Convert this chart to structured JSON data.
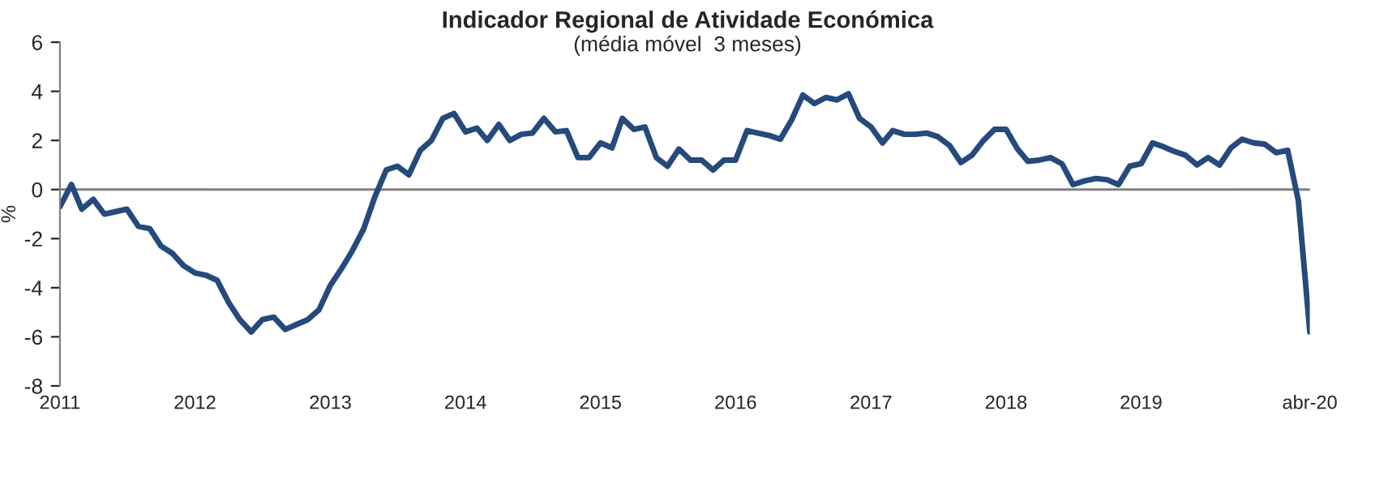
{
  "chart_data": {
    "type": "line",
    "title": "Indicador Regional de Atividade Económica",
    "subtitle": "(média móvel  3 meses)",
    "ylabel": "%",
    "x": [
      "2011-01",
      "2011-02",
      "2011-03",
      "2011-04",
      "2011-05",
      "2011-06",
      "2011-07",
      "2011-08",
      "2011-09",
      "2011-10",
      "2011-11",
      "2011-12",
      "2012-01",
      "2012-02",
      "2012-03",
      "2012-04",
      "2012-05",
      "2012-06",
      "2012-07",
      "2012-08",
      "2012-09",
      "2012-10",
      "2012-11",
      "2012-12",
      "2013-01",
      "2013-02",
      "2013-03",
      "2013-04",
      "2013-05",
      "2013-06",
      "2013-07",
      "2013-08",
      "2013-09",
      "2013-10",
      "2013-11",
      "2013-12",
      "2014-01",
      "2014-02",
      "2014-03",
      "2014-04",
      "2014-05",
      "2014-06",
      "2014-07",
      "2014-08",
      "2014-09",
      "2014-10",
      "2014-11",
      "2014-12",
      "2015-01",
      "2015-02",
      "2015-03",
      "2015-04",
      "2015-05",
      "2015-06",
      "2015-07",
      "2015-08",
      "2015-09",
      "2015-10",
      "2015-11",
      "2015-12",
      "2016-01",
      "2016-02",
      "2016-03",
      "2016-04",
      "2016-05",
      "2016-06",
      "2016-07",
      "2016-08",
      "2016-09",
      "2016-10",
      "2016-11",
      "2016-12",
      "2017-01",
      "2017-02",
      "2017-03",
      "2017-04",
      "2017-05",
      "2017-06",
      "2017-07",
      "2017-08",
      "2017-09",
      "2017-10",
      "2017-11",
      "2017-12",
      "2018-01",
      "2018-02",
      "2018-03",
      "2018-04",
      "2018-05",
      "2018-06",
      "2018-07",
      "2018-08",
      "2018-09",
      "2018-10",
      "2018-11",
      "2018-12",
      "2019-01",
      "2019-02",
      "2019-03",
      "2019-04",
      "2019-05",
      "2019-06",
      "2019-07",
      "2019-08",
      "2019-09",
      "2019-10",
      "2019-11",
      "2019-12",
      "2020-01",
      "2020-02",
      "2020-03",
      "2020-04"
    ],
    "series": [
      {
        "color": "#254a7c",
        "values": [
          -0.7,
          0.2,
          -0.8,
          -0.4,
          -1.0,
          -0.9,
          -0.8,
          -1.5,
          -1.6,
          -2.3,
          -2.6,
          -3.1,
          -3.4,
          -3.5,
          -3.7,
          -4.6,
          -5.3,
          -5.8,
          -5.3,
          -5.2,
          -5.7,
          -5.5,
          -5.3,
          -4.9,
          -3.9,
          -3.2,
          -2.5,
          -1.6,
          -0.3,
          0.8,
          0.95,
          0.6,
          1.6,
          2.0,
          2.9,
          3.1,
          2.35,
          2.5,
          2.0,
          2.65,
          2.0,
          2.25,
          2.3,
          2.9,
          2.35,
          2.4,
          1.3,
          1.3,
          1.9,
          1.7,
          2.9,
          2.45,
          2.55,
          1.3,
          0.95,
          1.65,
          1.2,
          1.2,
          0.8,
          1.2,
          1.2,
          2.4,
          2.3,
          2.2,
          2.05,
          2.85,
          3.85,
          3.5,
          3.75,
          3.65,
          3.9,
          2.9,
          2.55,
          1.9,
          2.4,
          2.25,
          2.25,
          2.3,
          2.15,
          1.8,
          1.1,
          1.4,
          2.0,
          2.45,
          2.45,
          1.65,
          1.15,
          1.2,
          1.3,
          1.05,
          0.2,
          0.35,
          0.45,
          0.4,
          0.2,
          0.95,
          1.05,
          1.9,
          1.75,
          1.55,
          1.4,
          1.0,
          1.3,
          1.0,
          1.7,
          2.05,
          1.9,
          1.85,
          1.5,
          1.6,
          -0.45,
          -5.8
        ]
      }
    ],
    "xlim": [
      "2011-01",
      "2020-04"
    ],
    "xticks": [
      {
        "value": "2011-01",
        "label": "2011"
      },
      {
        "value": "2012-01",
        "label": "2012"
      },
      {
        "value": "2013-01",
        "label": "2013"
      },
      {
        "value": "2014-01",
        "label": "2014"
      },
      {
        "value": "2015-01",
        "label": "2015"
      },
      {
        "value": "2016-01",
        "label": "2016"
      },
      {
        "value": "2017-01",
        "label": "2017"
      },
      {
        "value": "2018-01",
        "label": "2018"
      },
      {
        "value": "2019-01",
        "label": "2019"
      },
      {
        "value": "2020-04",
        "label": "abr-20"
      }
    ],
    "ylim": [
      -8,
      6
    ],
    "yticks": [
      -8,
      -6,
      -4,
      -2,
      0,
      2,
      4,
      6
    ],
    "ref_lines": [
      {
        "axis": "y",
        "value": 0,
        "color": "#808080"
      }
    ],
    "grid": false,
    "legend": false,
    "marker": "none",
    "line_style": "solid"
  }
}
